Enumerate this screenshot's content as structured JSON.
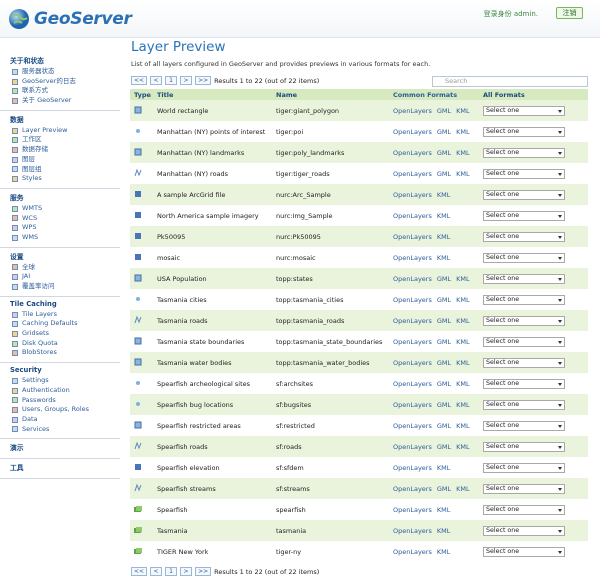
{
  "header": {
    "logo": "GeoServer",
    "login_label": "登录身份",
    "user": "admin.",
    "logout": "注销"
  },
  "sidebar": [
    {
      "title": "关于和状态",
      "items": [
        "服务器状态",
        "GeoServer的日志",
        "联系方式",
        "关于 GeoServer"
      ]
    },
    {
      "title": "数据",
      "items": [
        "Layer Preview",
        "工作区",
        "数据存储",
        "图层",
        "图层组",
        "Styles"
      ]
    },
    {
      "title": "服务",
      "items": [
        "WMTS",
        "WCS",
        "WPS",
        "WMS"
      ]
    },
    {
      "title": "设置",
      "items": [
        "全球",
        "JAI",
        "覆盖率访问"
      ]
    },
    {
      "title": "Tile Caching",
      "items": [
        "Tile Layers",
        "Caching Defaults",
        "Gridsets",
        "Disk Quota",
        "BlobStores"
      ]
    },
    {
      "title": "Security",
      "items": [
        "Settings",
        "Authentication",
        "Passwords",
        "Users, Groups, Roles",
        "Data",
        "Services"
      ]
    },
    {
      "title": "演示",
      "items": []
    },
    {
      "title": "工具",
      "items": []
    }
  ],
  "page": {
    "title": "Layer Preview",
    "description": "List of all layers configured in GeoServer and provides previews in various formats for each.",
    "pager": {
      "first": "<<",
      "prev": "<",
      "page": "1",
      "next": ">",
      "last": ">>",
      "results": "Results 1 to 22 (out of 22 items)"
    },
    "search_placeholder": "Search"
  },
  "table": {
    "columns": [
      "Type",
      "Title",
      "Name",
      "Common Formats",
      "All Formats"
    ],
    "select_placeholder": "Select one",
    "rows": [
      {
        "title": "World rectangle",
        "name": "tiger:giant_polygon",
        "formats": [
          "OpenLayers",
          "GML",
          "KML"
        ]
      },
      {
        "title": "Manhattan (NY) points of interest",
        "name": "tiger:poi",
        "formats": [
          "OpenLayers",
          "GML",
          "KML"
        ]
      },
      {
        "title": "Manhattan (NY) landmarks",
        "name": "tiger:poly_landmarks",
        "formats": [
          "OpenLayers",
          "GML",
          "KML"
        ]
      },
      {
        "title": "Manhattan (NY) roads",
        "name": "tiger:tiger_roads",
        "formats": [
          "OpenLayers",
          "GML",
          "KML"
        ]
      },
      {
        "title": "A sample ArcGrid file",
        "name": "nurc:Arc_Sample",
        "formats": [
          "OpenLayers",
          "KML"
        ]
      },
      {
        "title": "North America sample imagery",
        "name": "nurc:Img_Sample",
        "formats": [
          "OpenLayers",
          "KML"
        ]
      },
      {
        "title": "Pk50095",
        "name": "nurc:Pk50095",
        "formats": [
          "OpenLayers",
          "KML"
        ]
      },
      {
        "title": "mosaic",
        "name": "nurc:mosaic",
        "formats": [
          "OpenLayers",
          "KML"
        ]
      },
      {
        "title": "USA Population",
        "name": "topp:states",
        "formats": [
          "OpenLayers",
          "GML",
          "KML"
        ]
      },
      {
        "title": "Tasmania cities",
        "name": "topp:tasmania_cities",
        "formats": [
          "OpenLayers",
          "GML",
          "KML"
        ]
      },
      {
        "title": "Tasmania roads",
        "name": "topp:tasmania_roads",
        "formats": [
          "OpenLayers",
          "GML",
          "KML"
        ]
      },
      {
        "title": "Tasmania state boundaries",
        "name": "topp:tasmania_state_boundaries",
        "formats": [
          "OpenLayers",
          "GML",
          "KML"
        ]
      },
      {
        "title": "Tasmania water bodies",
        "name": "topp:tasmania_water_bodies",
        "formats": [
          "OpenLayers",
          "GML",
          "KML"
        ]
      },
      {
        "title": "Spearfish archeological sites",
        "name": "sf:archsites",
        "formats": [
          "OpenLayers",
          "GML",
          "KML"
        ]
      },
      {
        "title": "Spearfish bug locations",
        "name": "sf:bugsites",
        "formats": [
          "OpenLayers",
          "GML",
          "KML"
        ]
      },
      {
        "title": "Spearfish restricted areas",
        "name": "sf:restricted",
        "formats": [
          "OpenLayers",
          "GML",
          "KML"
        ]
      },
      {
        "title": "Spearfish roads",
        "name": "sf:roads",
        "formats": [
          "OpenLayers",
          "GML",
          "KML"
        ]
      },
      {
        "title": "Spearfish elevation",
        "name": "sf:sfdem",
        "formats": [
          "OpenLayers",
          "KML"
        ]
      },
      {
        "title": "Spearfish streams",
        "name": "sf:streams",
        "formats": [
          "OpenLayers",
          "GML",
          "KML"
        ]
      },
      {
        "title": "Spearfish",
        "name": "spearfish",
        "formats": [
          "OpenLayers",
          "KML"
        ]
      },
      {
        "title": "Tasmania",
        "name": "tasmania",
        "formats": [
          "OpenLayers",
          "KML"
        ]
      },
      {
        "title": "TIGER New York",
        "name": "tiger-ny",
        "formats": [
          "OpenLayers",
          "KML"
        ]
      }
    ]
  }
}
